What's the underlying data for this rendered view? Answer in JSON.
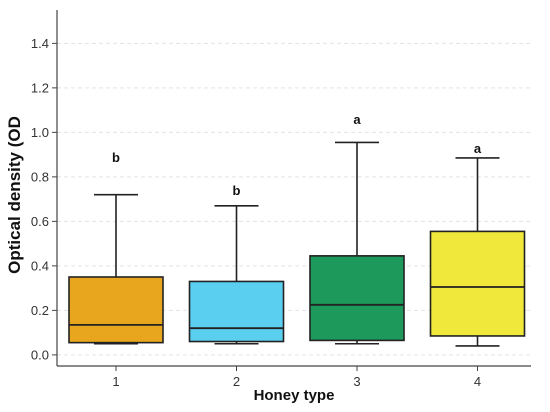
{
  "chart_data": {
    "type": "box",
    "xlabel": "Honey type",
    "ylabel": "Optical density (OD",
    "categories": [
      "1",
      "2",
      "3",
      "4"
    ],
    "ylim": [
      -0.05,
      1.55
    ],
    "yticks": [
      0.0,
      0.2,
      0.4,
      0.6,
      0.8,
      1.0,
      1.2,
      1.4
    ],
    "ytick_labels": [
      "0.0",
      "0.2",
      "0.4",
      "0.6",
      "0.8",
      "1.0",
      "1.2",
      "1.4"
    ],
    "grid": true,
    "boxes": [
      {
        "category": "1",
        "whisker_low": 0.05,
        "q1": 0.055,
        "median": 0.135,
        "q3": 0.35,
        "whisker_high": 0.72,
        "color": "#E8A61F",
        "letter": "b",
        "letter_y": 0.89
      },
      {
        "category": "2",
        "whisker_low": 0.05,
        "q1": 0.06,
        "median": 0.12,
        "q3": 0.33,
        "whisker_high": 0.67,
        "color": "#5BCFF0",
        "letter": "b",
        "letter_y": 0.74
      },
      {
        "category": "3",
        "whisker_low": 0.05,
        "q1": 0.065,
        "median": 0.225,
        "q3": 0.445,
        "whisker_high": 0.955,
        "color": "#1D9A5B",
        "letter": "a",
        "letter_y": 1.06
      },
      {
        "category": "4",
        "whisker_low": 0.04,
        "q1": 0.085,
        "median": 0.305,
        "q3": 0.555,
        "whisker_high": 0.885,
        "color": "#F0E83A",
        "letter": "a",
        "letter_y": 0.93
      }
    ]
  }
}
